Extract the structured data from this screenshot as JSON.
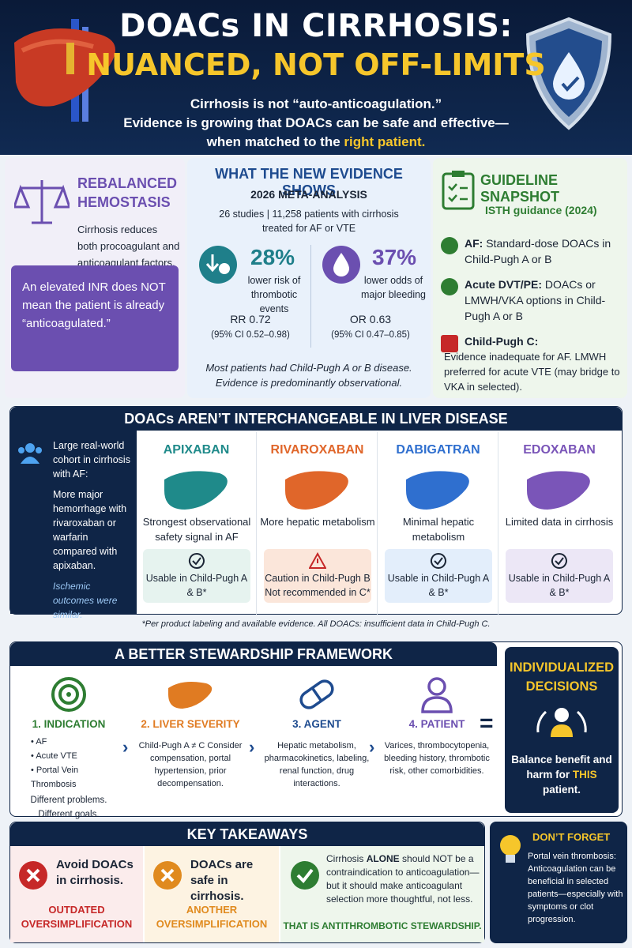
{
  "header": {
    "title": "DOACs IN CIRRHOSIS:",
    "title_highlight": "NUANCED, NOT OFF-LIMITS",
    "subtitle": [
      "Cirrhosis is not “auto-anticoagulation.”",
      "Evidence is growing that DOACs can be safe and effective—",
      "when matched to the"
    ],
    "subtitle_highlight": "right patient."
  },
  "hemostasis": {
    "title": "REBALANCED HEMOSTASIS",
    "text": "Cirrhosis reduces both procoagulant and anticoagulant factors.",
    "callout": "An elevated INR does NOT mean the patient is already “anticoagulated.”"
  },
  "evidence": {
    "title": "WHAT THE NEW EVIDENCE SHOWS",
    "subtitle": "2026 META-ANALYSIS",
    "description": "26 studies | 11,258 patients with cirrhosis treated for AF or VTE",
    "stats": [
      {
        "value": "28%",
        "label": "lower risk of thrombotic events",
        "ratio": "RR 0.72",
        "ci": "(95% CI 0.52–0.98)"
      },
      {
        "value": "37%",
        "label": "lower odds of major bleeding",
        "ratio": "OR 0.63",
        "ci": "(95% CI 0.47–0.85)"
      }
    ],
    "note": "Most patients had Child-Pugh A or B disease. Evidence is predominantly observational."
  },
  "guideline": {
    "title": "GUIDELINE SNAPSHOT",
    "source": "ISTH guidance (2024)",
    "items": [
      {
        "label": "AF:",
        "text": "Standard-dose DOACs in Child-Pugh A or B"
      },
      {
        "label": "Acute DVT/PE:",
        "text": "DOACs or LMWH/VKA options in Child-Pugh A or B"
      },
      {
        "label": "Child-Pugh C:",
        "text": "Evidence inadequate for AF. LMWH preferred for acute VTE (may bridge to VKA in selected)."
      }
    ]
  },
  "doacs": {
    "title": "DOACs AREN’T INTERCHANGEABLE IN LIVER DISEASE",
    "cohort": {
      "intro": "Large real-world cohort in cirrhosis with AF:",
      "finding": "More major hemorrhage with rivaroxaban or warfarin compared with apixaban.",
      "note": "Ischemic outcomes were similar."
    },
    "drugs": [
      {
        "name": "APIXABAN",
        "color": "#1f8a8a",
        "badge_color": "#e6f3ef",
        "description": "Strongest observational safety signal in AF",
        "status": "Usable in Child-Pugh A & B*"
      },
      {
        "name": "RIVAROXABAN",
        "color": "#e0662a",
        "badge_color": "#fbe6da",
        "description": "More hepatic metabolism",
        "status": "Caution in Child-Pugh B Not recommended in C*"
      },
      {
        "name": "DABIGATRAN",
        "color": "#2f6fcf",
        "badge_color": "#e3eefb",
        "description": "Minimal hepatic metabolism",
        "status": "Usable in Child-Pugh A & B*"
      },
      {
        "name": "EDOXABAN",
        "color": "#7a55b8",
        "badge_color": "#ece7f6",
        "description": "Limited data in cirrhosis",
        "status": "Usable in Child-Pugh A & B*"
      }
    ],
    "footnote": "*Per product labeling and available evidence. All DOACs: insufficient data in Child-Pugh C."
  },
  "framework": {
    "title": "A BETTER STEWARDSHIP FRAMEWORK",
    "steps": [
      {
        "title": "1. INDICATION",
        "bullets": [
          "AF",
          "Acute VTE",
          "Portal Vein Thrombosis"
        ],
        "text": "Different problems. Different goals."
      },
      {
        "title": "2. LIVER SEVERITY",
        "text": "Child-Pugh A ≠ C Consider compensation, portal hypertension, prior decompensation."
      },
      {
        "title": "3. AGENT",
        "text": "Hepatic metabolism, pharmacokinetics, labeling, renal function, drug interactions."
      },
      {
        "title": "4. PATIENT",
        "text": "Varices, thrombocytopenia, bleeding history, thrombotic risk, other comorbidities."
      }
    ],
    "equals": "=",
    "result": {
      "title": "INDIVIDUALIZED DECISIONS",
      "text": "Balance benefit and harm for",
      "highlight": "THIS",
      "end": "patient."
    }
  },
  "takeaways": {
    "title": "KEY TAKEAWAYS",
    "items": [
      {
        "statement": "Avoid DOACs in cirrhosis.",
        "verdict": "OUTDATED OVERSIMPLIFICATION"
      },
      {
        "statement": "DOACs are safe in cirrhosis.",
        "verdict": "ANOTHER OVERSIMPLIFICATION"
      },
      {
        "statement_start": "Cirrhosis",
        "emphasis": "ALONE",
        "statement_end": "should NOT be a contraindication to anticoagulation—but it should make anticoagulant selection more thoughtful, not less.",
        "verdict": "THAT IS ANTITHROMBOTIC STEWARDSHIP."
      }
    ]
  },
  "reminder": {
    "title": "DON’T FORGET",
    "text": "Portal vein thrombosis: Anticoagulation can be beneficial in selected patients—especially with symptoms or clot progression."
  }
}
